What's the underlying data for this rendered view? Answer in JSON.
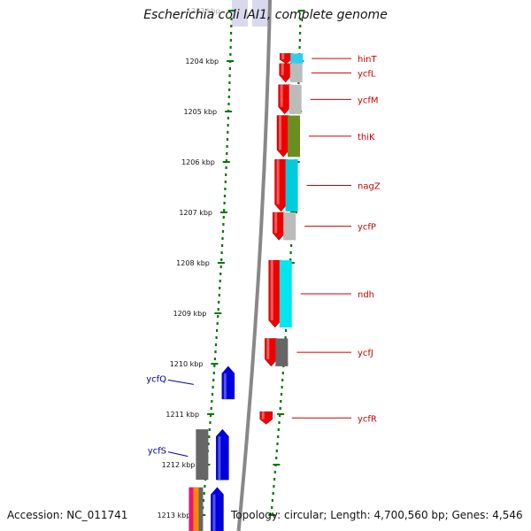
{
  "title": "Escherichia coli IAI1, complete genome",
  "footer": {
    "accession": "Accession: NC_011741",
    "summary": "Topology: circular; Length: 4,700,560 bp; Genes: 4,546"
  },
  "ruler": {
    "unit": "kbp",
    "ticks": [
      {
        "kbp": 1203,
        "label": "1203 kbp",
        "faded": true
      },
      {
        "kbp": 1204,
        "label": "1204 kbp"
      },
      {
        "kbp": 1205,
        "label": "1205 kbp"
      },
      {
        "kbp": 1206,
        "label": "1206 kbp"
      },
      {
        "kbp": 1207,
        "label": "1207 kbp"
      },
      {
        "kbp": 1208,
        "label": "1208 kbp"
      },
      {
        "kbp": 1209,
        "label": "1209 kbp"
      },
      {
        "kbp": 1210,
        "label": "1210 kbp"
      },
      {
        "kbp": 1211,
        "label": "1211 kbp"
      },
      {
        "kbp": 1212,
        "label": "1212 kbp"
      },
      {
        "kbp": 1213,
        "label": "1213 kbp"
      }
    ]
  },
  "colors": {
    "forward_gene": "#ee0000",
    "reverse_gene": "#0000dd",
    "forward_label": "#cc0000",
    "reverse_label": "#0000aa",
    "ruler": "#007700",
    "backbone": "#888888"
  },
  "genes": [
    {
      "name": "hinT",
      "strand": "forward",
      "start_kbp": 1203.85,
      "end_kbp": 1204.05,
      "cog_color": "#33ccee"
    },
    {
      "name": "ycfL",
      "strand": "forward",
      "start_kbp": 1204.05,
      "end_kbp": 1204.42,
      "cog_color": "#bbbbbb"
    },
    {
      "name": "ycfM",
      "strand": "forward",
      "start_kbp": 1204.47,
      "end_kbp": 1205.05,
      "cog_color": "#bbbbbb"
    },
    {
      "name": "thiK",
      "strand": "forward",
      "start_kbp": 1205.08,
      "end_kbp": 1205.9,
      "cog_color": "#6b8e23"
    },
    {
      "name": "nagZ",
      "strand": "forward",
      "start_kbp": 1205.95,
      "end_kbp": 1206.98,
      "cog_color": "#00ccdd"
    },
    {
      "name": "ycfP",
      "strand": "forward",
      "start_kbp": 1207.0,
      "end_kbp": 1207.55,
      "cog_color": "#bbbbbb"
    },
    {
      "name": "ndh",
      "strand": "forward",
      "start_kbp": 1207.95,
      "end_kbp": 1209.28,
      "cog_color": "#00e5ee"
    },
    {
      "name": "ycfJ",
      "strand": "forward",
      "start_kbp": 1209.5,
      "end_kbp": 1210.05,
      "cog_color": "#666666"
    },
    {
      "name": "ycfQ",
      "strand": "reverse",
      "start_kbp": 1210.05,
      "end_kbp": 1210.7,
      "cog_color": ""
    },
    {
      "name": "ycfR",
      "strand": "forward",
      "start_kbp": 1210.95,
      "end_kbp": 1211.2,
      "cog_color": ""
    },
    {
      "name": "ycfS",
      "strand": "reverse",
      "start_kbp": 1211.3,
      "end_kbp": 1212.3,
      "cog_color": "#666666"
    },
    {
      "name": "",
      "strand": "reverse",
      "start_kbp": 1212.45,
      "end_kbp": 1213.5,
      "cog_color": "#ff8800"
    }
  ]
}
